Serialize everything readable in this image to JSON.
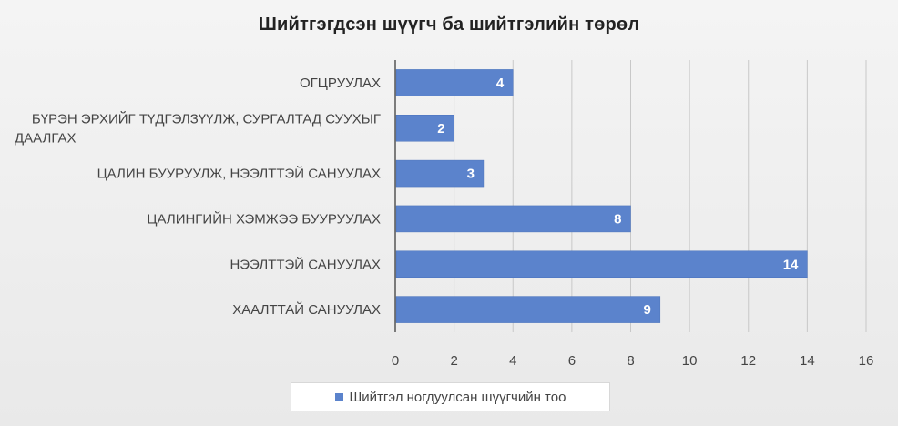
{
  "chart_data": {
    "type": "bar",
    "orientation": "horizontal",
    "title": "Шийтгэгдсэн шүүгч ба шийтгэлийн төрөл",
    "categories": [
      "Огцруулах",
      "Бүрэн эрхийг түдгэлзүүлж, сургалтад суухыг даалгах",
      "Цалин бууруулж, нээлттэй сануулах",
      "Цалингийн хэмжээ бууруулах",
      "Нээлттэй сануулах",
      "Хаалттай сануулах"
    ],
    "series": [
      {
        "name": "Шийтгэл ногдуулсан шүүгчийн тоо",
        "values": [
          4,
          2,
          3,
          8,
          14,
          9
        ],
        "color": "#5b83cc"
      }
    ],
    "xlim": [
      0,
      16
    ],
    "x_ticks": [
      0,
      2,
      4,
      6,
      8,
      10,
      12,
      14,
      16
    ],
    "grid": true,
    "legend": "bottom",
    "data_labels": true
  }
}
